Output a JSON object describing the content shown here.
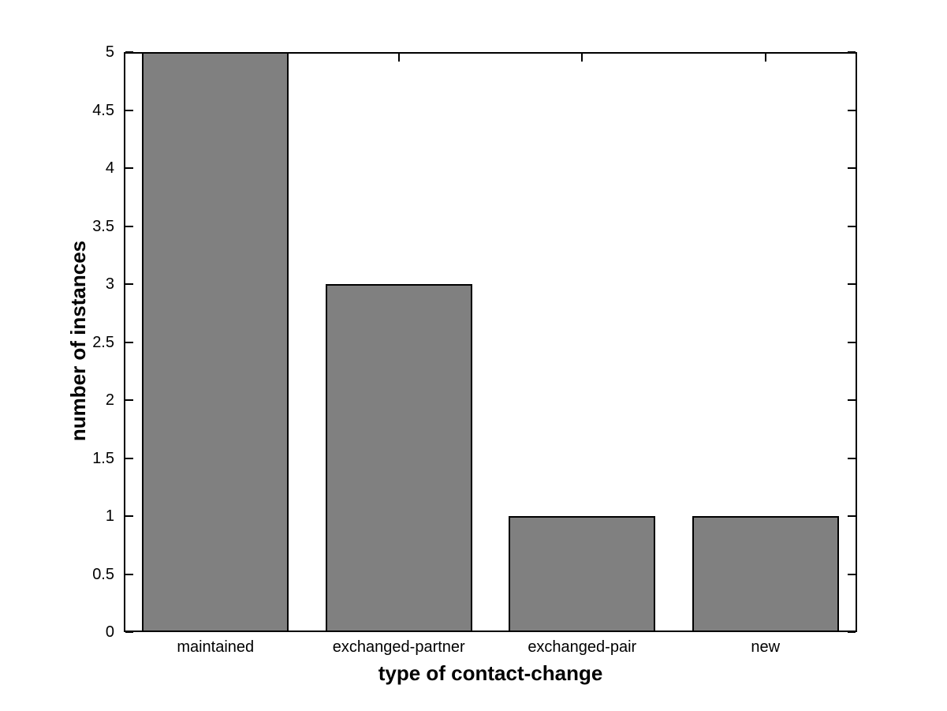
{
  "figure": {
    "background": "#ffffff"
  },
  "chart_data": {
    "type": "bar",
    "title": "",
    "categories": [
      "maintained",
      "exchanged-partner",
      "exchanged-pair",
      "new"
    ],
    "values": [
      5,
      3,
      1,
      1
    ],
    "xlabel": "type of contact-change",
    "ylabel": "number of instances",
    "ylim": [
      0,
      5
    ],
    "yticks": [
      0,
      0.5,
      1,
      1.5,
      2,
      2.5,
      3,
      3.5,
      4,
      4.5,
      5
    ],
    "ytick_labels": [
      "0",
      "0.5",
      "1",
      "1.5",
      "2",
      "2.5",
      "3",
      "3.5",
      "4",
      "4.5",
      "5"
    ],
    "bar_width_fraction": 0.8,
    "grid": false,
    "legend": "none",
    "bar_fill_color": "#808080",
    "bar_edge_color": "#000000",
    "axis_color": "#000000",
    "plot_background": "#ffffff"
  }
}
